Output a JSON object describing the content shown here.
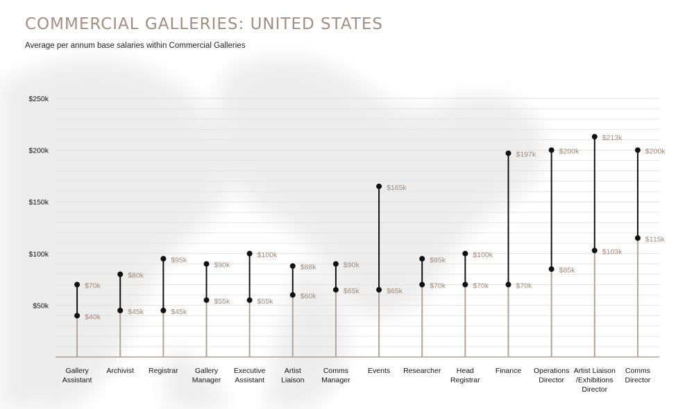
{
  "header": {
    "title": "COMMERCIAL GALLERIES: UNITED STATES",
    "subtitle": "Average per annum base salaries within Commercial Galleries"
  },
  "colors": {
    "accent": "#a38e81",
    "stem": "#b3a397",
    "range": "#111111",
    "grid": "#e4e0dc",
    "value_label": "#a08a7c"
  },
  "chart_data": {
    "type": "dumbbell",
    "title": "",
    "xlabel": "",
    "ylabel": "",
    "ylim": [
      0,
      250
    ],
    "yticks": [
      {
        "value": 50,
        "label": "$50k"
      },
      {
        "value": 100,
        "label": "$100k"
      },
      {
        "value": 150,
        "label": "$150k"
      },
      {
        "value": 200,
        "label": "$200k"
      },
      {
        "value": 250,
        "label": "$250k"
      }
    ],
    "grid": true,
    "categories": [
      [
        "Gallery",
        "Assistant"
      ],
      [
        "Archivist"
      ],
      [
        "Registrar"
      ],
      [
        "Gallery",
        "Manager"
      ],
      [
        "Executive",
        "Assistant"
      ],
      [
        "Artist",
        "Liaison"
      ],
      [
        "Comms",
        "Manager"
      ],
      [
        "Events"
      ],
      [
        "Researcher"
      ],
      [
        "Head",
        "Registrar"
      ],
      [
        "Finance"
      ],
      [
        "Operations",
        "Director"
      ],
      [
        "Artist Liaison",
        "/Exhibitions",
        "Director"
      ],
      [
        "Comms",
        "Director"
      ]
    ],
    "series": [
      {
        "name": "low",
        "values": [
          40,
          45,
          45,
          55,
          55,
          60,
          65,
          65,
          70,
          70,
          70,
          85,
          103,
          115
        ],
        "labels": [
          "$40k",
          "$45k",
          "$45k",
          "$55k",
          "$55k",
          "$60k",
          "$65k",
          "$65k",
          "$70k",
          "$70k",
          "$70k",
          "$85k",
          "$103k",
          "$115k"
        ]
      },
      {
        "name": "high",
        "values": [
          70,
          80,
          95,
          90,
          100,
          88,
          90,
          165,
          95,
          100,
          197,
          200,
          213,
          200
        ],
        "labels": [
          "$70k",
          "$80k",
          "$95k",
          "$90k",
          "$100k",
          "$88k",
          "$90k",
          "$165k",
          "$95k",
          "$100k",
          "$197k",
          "$200k",
          "$213k",
          "$200k"
        ]
      }
    ]
  }
}
